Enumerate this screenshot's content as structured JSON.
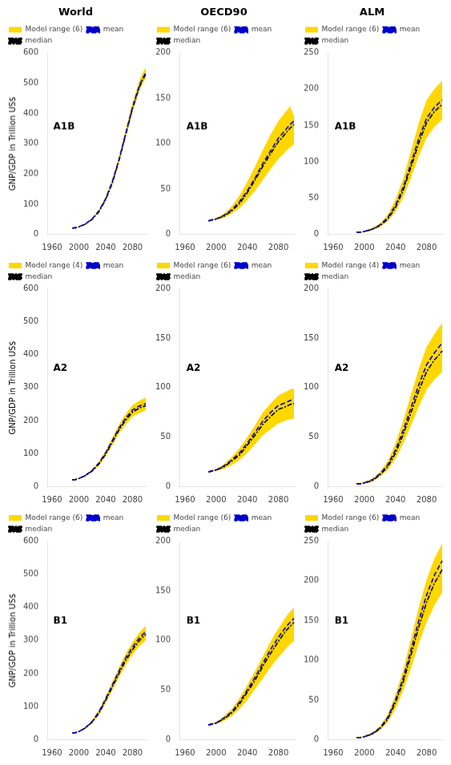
{
  "chart_data": [
    {
      "type": "line",
      "title": "World",
      "ylabel": "GNP/GDP in Trillion US$",
      "annotation": "A1B",
      "x": [
        1990,
        1995,
        2000,
        2010,
        2020,
        2030,
        2040,
        2050,
        2060,
        2070,
        2080,
        2090,
        2095,
        2100
      ],
      "xlim": [
        1953,
        2101
      ],
      "xticks": [
        1960,
        2000,
        2040,
        2080
      ],
      "ylim": [
        0,
        600
      ],
      "yticks": [
        0,
        100,
        200,
        300,
        400,
        500,
        600
      ],
      "grid": false,
      "legend": "upper left",
      "series": [
        {
          "name": "Model range (6)",
          "type": "band",
          "color": "#FFD700",
          "low": [
            20,
            21,
            24,
            33,
            49,
            73,
            112,
            166,
            238,
            322,
            405,
            472,
            497,
            517
          ],
          "high": [
            22,
            23,
            26,
            37,
            55,
            83,
            124,
            184,
            258,
            348,
            435,
            508,
            533,
            553
          ]
        },
        {
          "name": "mean",
          "color": "#0000CC",
          "line_style": "dashed",
          "values": [
            21,
            22,
            25,
            35,
            52,
            78,
            118,
            175,
            248,
            335,
            420,
            490,
            515,
            535
          ]
        },
        {
          "name": "median",
          "color": "#000000",
          "line_style": "dashdot",
          "values": [
            21,
            22,
            25,
            34,
            50,
            75,
            115,
            170,
            245,
            330,
            415,
            485,
            510,
            530
          ]
        }
      ]
    },
    {
      "type": "line",
      "title": "OECD90",
      "annotation": "A1B",
      "x": [
        1990,
        1995,
        2000,
        2010,
        2020,
        2030,
        2040,
        2050,
        2060,
        2070,
        2080,
        2090,
        2095,
        2100
      ],
      "xlim": [
        1953,
        2101
      ],
      "xticks": [
        1960,
        2000,
        2040,
        2080
      ],
      "ylim": [
        0,
        200
      ],
      "yticks": [
        0,
        50,
        100,
        150,
        200
      ],
      "grid": false,
      "legend": "upper left",
      "series": [
        {
          "name": "Model range (6)",
          "type": "band",
          "color": "#FFD700",
          "low": [
            14,
            15,
            16,
            18,
            23,
            29,
            38,
            48,
            60,
            72,
            83,
            92,
            96,
            99
          ],
          "high": [
            16,
            17,
            18,
            23,
            31,
            43,
            58,
            75,
            93,
            110,
            125,
            136,
            141,
            130
          ]
        },
        {
          "name": "mean",
          "color": "#0000CC",
          "line_style": "dashed",
          "values": [
            15,
            16,
            17,
            21,
            27,
            36,
            48,
            62,
            78,
            92,
            106,
            116,
            121,
            125
          ]
        },
        {
          "name": "median",
          "color": "#000000",
          "line_style": "dashdot",
          "values": [
            15,
            16,
            17,
            20,
            26,
            34,
            46,
            60,
            75,
            89,
            102,
            112,
            117,
            121
          ]
        }
      ]
    },
    {
      "type": "line",
      "title": "ALM",
      "annotation": "A1B",
      "x": [
        1990,
        1995,
        2000,
        2010,
        2020,
        2030,
        2040,
        2050,
        2060,
        2070,
        2080,
        2090,
        2095,
        2100
      ],
      "xlim": [
        1953,
        2101
      ],
      "xticks": [
        1960,
        2000,
        2040,
        2080
      ],
      "ylim": [
        0,
        250
      ],
      "yticks": [
        0,
        50,
        100,
        150,
        200,
        250
      ],
      "grid": false,
      "legend": "upper left",
      "series": [
        {
          "name": "Model range (6)",
          "type": "band",
          "color": "#FFD700",
          "low": [
            2,
            3,
            3,
            6,
            10,
            18,
            31,
            51,
            78,
            108,
            133,
            148,
            153,
            158
          ],
          "high": [
            4,
            4,
            5,
            9,
            15,
            27,
            48,
            77,
            115,
            154,
            185,
            200,
            206,
            211
          ]
        },
        {
          "name": "mean",
          "color": "#0000CC",
          "line_style": "dashed",
          "values": [
            3,
            3,
            4,
            7,
            13,
            23,
            40,
            65,
            98,
            132,
            160,
            175,
            180,
            185
          ]
        },
        {
          "name": "median",
          "color": "#000000",
          "line_style": "dashdot",
          "values": [
            3,
            3,
            4,
            7,
            12,
            21,
            37,
            61,
            93,
            126,
            154,
            169,
            174,
            179
          ]
        }
      ]
    },
    {
      "type": "line",
      "ylabel": "GNP/GDP in Trillion US$",
      "annotation": "A2",
      "x": [
        1990,
        1995,
        2000,
        2010,
        2020,
        2030,
        2040,
        2050,
        2060,
        2070,
        2080,
        2090,
        2095,
        2100
      ],
      "xlim": [
        1953,
        2101
      ],
      "xticks": [
        1960,
        2000,
        2040,
        2080
      ],
      "ylim": [
        0,
        600
      ],
      "yticks": [
        0,
        100,
        200,
        300,
        400,
        500,
        600
      ],
      "grid": false,
      "legend": "upper left",
      "series": [
        {
          "name": "Model range (4)",
          "type": "band",
          "color": "#FFD700",
          "low": [
            20,
            21,
            24,
            32,
            45,
            64,
            92,
            126,
            161,
            189,
            212,
            223,
            227,
            231
          ],
          "high": [
            22,
            23,
            26,
            37,
            53,
            77,
            110,
            149,
            189,
            221,
            247,
            260,
            265,
            270
          ]
        },
        {
          "name": "mean",
          "color": "#0000CC",
          "line_style": "dashed",
          "values": [
            21,
            22,
            25,
            35,
            50,
            72,
            103,
            140,
            178,
            208,
            232,
            244,
            248,
            252
          ]
        },
        {
          "name": "median",
          "color": "#000000",
          "line_style": "dashdot",
          "values": [
            21,
            22,
            25,
            34,
            48,
            69,
            99,
            135,
            173,
            202,
            226,
            238,
            242,
            246
          ]
        }
      ]
    },
    {
      "type": "line",
      "annotation": "A2",
      "x": [
        1990,
        1995,
        2000,
        2010,
        2020,
        2030,
        2040,
        2050,
        2060,
        2070,
        2080,
        2090,
        2095,
        2100
      ],
      "xlim": [
        1953,
        2101
      ],
      "xticks": [
        1960,
        2000,
        2040,
        2080
      ],
      "ylim": [
        0,
        200
      ],
      "yticks": [
        0,
        50,
        100,
        150,
        200
      ],
      "grid": false,
      "legend": "upper left",
      "series": [
        {
          "name": "Model range (6)",
          "type": "band",
          "color": "#FFD700",
          "low": [
            14,
            15,
            16,
            18,
            22,
            27,
            34,
            43,
            52,
            58,
            64,
            67,
            68,
            69
          ],
          "high": [
            16,
            17,
            18,
            23,
            30,
            39,
            50,
            62,
            75,
            84,
            92,
            96,
            98,
            99
          ]
        },
        {
          "name": "mean",
          "color": "#0000CC",
          "line_style": "dashed",
          "values": [
            15,
            16,
            17,
            21,
            27,
            34,
            44,
            55,
            66,
            75,
            82,
            85,
            87,
            88
          ]
        },
        {
          "name": "median",
          "color": "#000000",
          "line_style": "dashdot",
          "values": [
            15,
            16,
            17,
            20,
            26,
            32,
            42,
            52,
            63,
            71,
            78,
            81,
            83,
            84
          ]
        }
      ]
    },
    {
      "type": "line",
      "annotation": "A2",
      "x": [
        1990,
        1995,
        2000,
        2010,
        2020,
        2030,
        2040,
        2050,
        2060,
        2070,
        2080,
        2090,
        2095,
        2100
      ],
      "xlim": [
        1953,
        2101
      ],
      "xticks": [
        1960,
        2000,
        2040,
        2080
      ],
      "ylim": [
        0,
        200
      ],
      "yticks": [
        0,
        50,
        100,
        150,
        200
      ],
      "grid": false,
      "legend": "upper left",
      "series": [
        {
          "name": "Model range (4)",
          "type": "band",
          "color": "#FFD700",
          "low": [
            2,
            3,
            3,
            5,
            10,
            17,
            28,
            44,
            62,
            81,
            98,
            108,
            112,
            116
          ],
          "high": [
            4,
            4,
            5,
            8,
            15,
            26,
            44,
            67,
            93,
            119,
            141,
            154,
            160,
            165
          ]
        },
        {
          "name": "mean",
          "color": "#0000CC",
          "line_style": "dashed",
          "values": [
            3,
            3,
            4,
            7,
            13,
            22,
            37,
            57,
            80,
            103,
            123,
            135,
            140,
            145
          ]
        },
        {
          "name": "median",
          "color": "#000000",
          "line_style": "dashdot",
          "values": [
            3,
            3,
            4,
            6,
            12,
            20,
            34,
            53,
            75,
            97,
            116,
            128,
            132,
            137
          ]
        }
      ]
    },
    {
      "type": "line",
      "ylabel": "GNP/GDP in Trillion US$",
      "annotation": "B1",
      "x": [
        1990,
        1995,
        2000,
        2010,
        2020,
        2030,
        2040,
        2050,
        2060,
        2070,
        2080,
        2090,
        2095,
        2100
      ],
      "xlim": [
        1953,
        2101
      ],
      "xticks": [
        1960,
        2000,
        2040,
        2080
      ],
      "ylim": [
        0,
        600
      ],
      "yticks": [
        0,
        100,
        200,
        300,
        400,
        500,
        600
      ],
      "grid": false,
      "legend": "upper left",
      "series": [
        {
          "name": "Model range (6)",
          "type": "band",
          "color": "#FFD700",
          "low": [
            20,
            21,
            24,
            34,
            50,
            75,
            111,
            150,
            189,
            226,
            257,
            282,
            291,
            301
          ],
          "high": [
            22,
            23,
            26,
            39,
            59,
            90,
            131,
            175,
            219,
            261,
            295,
            323,
            334,
            345
          ]
        },
        {
          "name": "mean",
          "color": "#0000CC",
          "line_style": "dashed",
          "values": [
            21,
            22,
            25,
            37,
            56,
            85,
            124,
            166,
            208,
            248,
            280,
            307,
            317,
            327
          ]
        },
        {
          "name": "median",
          "color": "#000000",
          "line_style": "dashdot",
          "values": [
            21,
            22,
            25,
            36,
            54,
            81,
            119,
            160,
            201,
            240,
            272,
            299,
            309,
            319
          ]
        }
      ]
    },
    {
      "type": "line",
      "annotation": "B1",
      "x": [
        1990,
        1995,
        2000,
        2010,
        2020,
        2030,
        2040,
        2050,
        2060,
        2070,
        2080,
        2090,
        2095,
        2100
      ],
      "xlim": [
        1953,
        2101
      ],
      "xticks": [
        1960,
        2000,
        2040,
        2080
      ],
      "ylim": [
        0,
        200
      ],
      "yticks": [
        0,
        50,
        100,
        150,
        200
      ],
      "grid": false,
      "legend": "upper left",
      "series": [
        {
          "name": "Model range (6)",
          "type": "band",
          "color": "#FFD700",
          "low": [
            14,
            15,
            16,
            19,
            24,
            31,
            40,
            51,
            62,
            73,
            83,
            92,
            96,
            99
          ],
          "high": [
            16,
            17,
            18,
            24,
            31,
            42,
            55,
            69,
            84,
            99,
            112,
            124,
            129,
            133
          ]
        },
        {
          "name": "mean",
          "color": "#0000CC",
          "line_style": "dashed",
          "values": [
            15,
            16,
            17,
            22,
            28,
            38,
            50,
            63,
            77,
            91,
            103,
            114,
            118,
            122
          ]
        },
        {
          "name": "median",
          "color": "#000000",
          "line_style": "dashdot",
          "values": [
            15,
            16,
            17,
            21,
            27,
            36,
            48,
            60,
            74,
            87,
            99,
            110,
            114,
            118
          ]
        }
      ]
    },
    {
      "type": "line",
      "annotation": "B1",
      "x": [
        1990,
        1995,
        2000,
        2010,
        2020,
        2030,
        2040,
        2050,
        2060,
        2070,
        2080,
        2090,
        2095,
        2100
      ],
      "xlim": [
        1953,
        2101
      ],
      "xticks": [
        1960,
        2000,
        2040,
        2080
      ],
      "ylim": [
        0,
        250
      ],
      "yticks": [
        0,
        50,
        100,
        150,
        200,
        250
      ],
      "grid": false,
      "legend": "upper left",
      "series": [
        {
          "name": "Model range (6)",
          "type": "band",
          "color": "#FFD700",
          "low": [
            2,
            3,
            3,
            6,
            12,
            22,
            39,
            62,
            90,
            121,
            148,
            169,
            177,
            185
          ],
          "high": [
            4,
            4,
            5,
            9,
            17,
            32,
            57,
            88,
            127,
            167,
            201,
            228,
            237,
            247
          ]
        },
        {
          "name": "mean",
          "color": "#0000CC",
          "line_style": "dashed",
          "values": [
            3,
            3,
            4,
            8,
            15,
            28,
            50,
            78,
            113,
            150,
            182,
            207,
            216,
            225
          ]
        },
        {
          "name": "median",
          "color": "#000000",
          "line_style": "dashdot",
          "values": [
            3,
            3,
            4,
            7,
            14,
            26,
            47,
            73,
            107,
            142,
            173,
            197,
            205,
            214
          ]
        }
      ]
    }
  ]
}
